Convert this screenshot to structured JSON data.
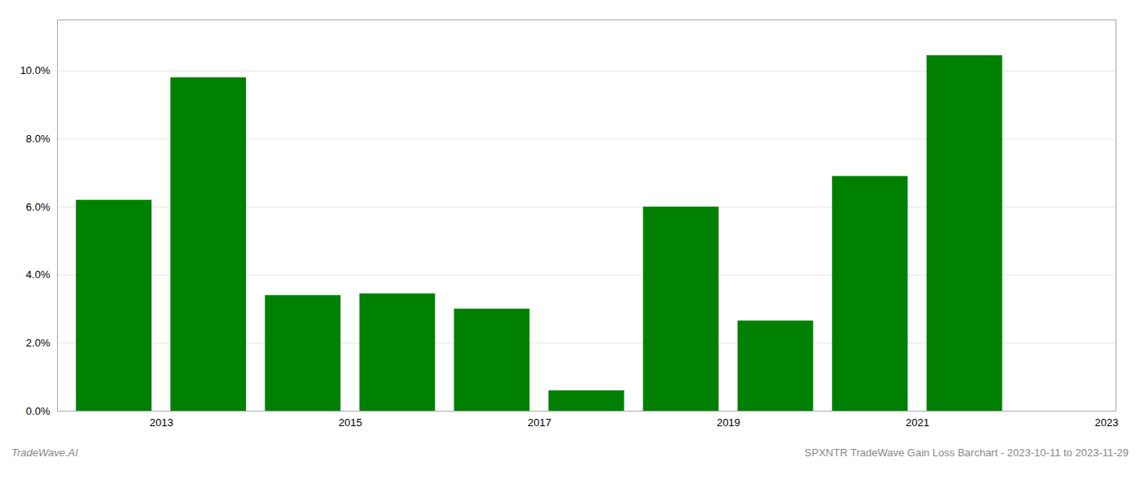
{
  "chart_data": {
    "type": "bar",
    "x": [
      2013,
      2014,
      2015,
      2016,
      2017,
      2018,
      2019,
      2020,
      2021,
      2022
    ],
    "values": [
      0.062,
      0.098,
      0.034,
      0.0345,
      0.03,
      0.006,
      0.06,
      0.0265,
      0.069,
      0.1045
    ],
    "color": "#008000",
    "xlim": [
      2012.4,
      2023.6
    ],
    "xticks": [
      {
        "value": 2013.5,
        "label": "2013"
      },
      {
        "value": 2015.5,
        "label": "2015"
      },
      {
        "value": 2017.5,
        "label": "2017"
      },
      {
        "value": 2019.5,
        "label": "2019"
      },
      {
        "value": 2021.5,
        "label": "2021"
      },
      {
        "value": 2023.5,
        "label": "2023"
      }
    ],
    "ylim": [
      0,
      0.115
    ],
    "yticks": [
      {
        "value": 0.0,
        "label": "0.0%"
      },
      {
        "value": 0.02,
        "label": "2.0%"
      },
      {
        "value": 0.04,
        "label": "4.0%"
      },
      {
        "value": 0.06,
        "label": "6.0%"
      },
      {
        "value": 0.08,
        "label": "8.0%"
      },
      {
        "value": 0.1,
        "label": "10.0%"
      }
    ],
    "grid": true,
    "annotations": [
      "TradeWave.AI",
      "SPXNTR TradeWave Gain Loss Barchart - 2023-10-11 to 2023-11-29"
    ]
  }
}
